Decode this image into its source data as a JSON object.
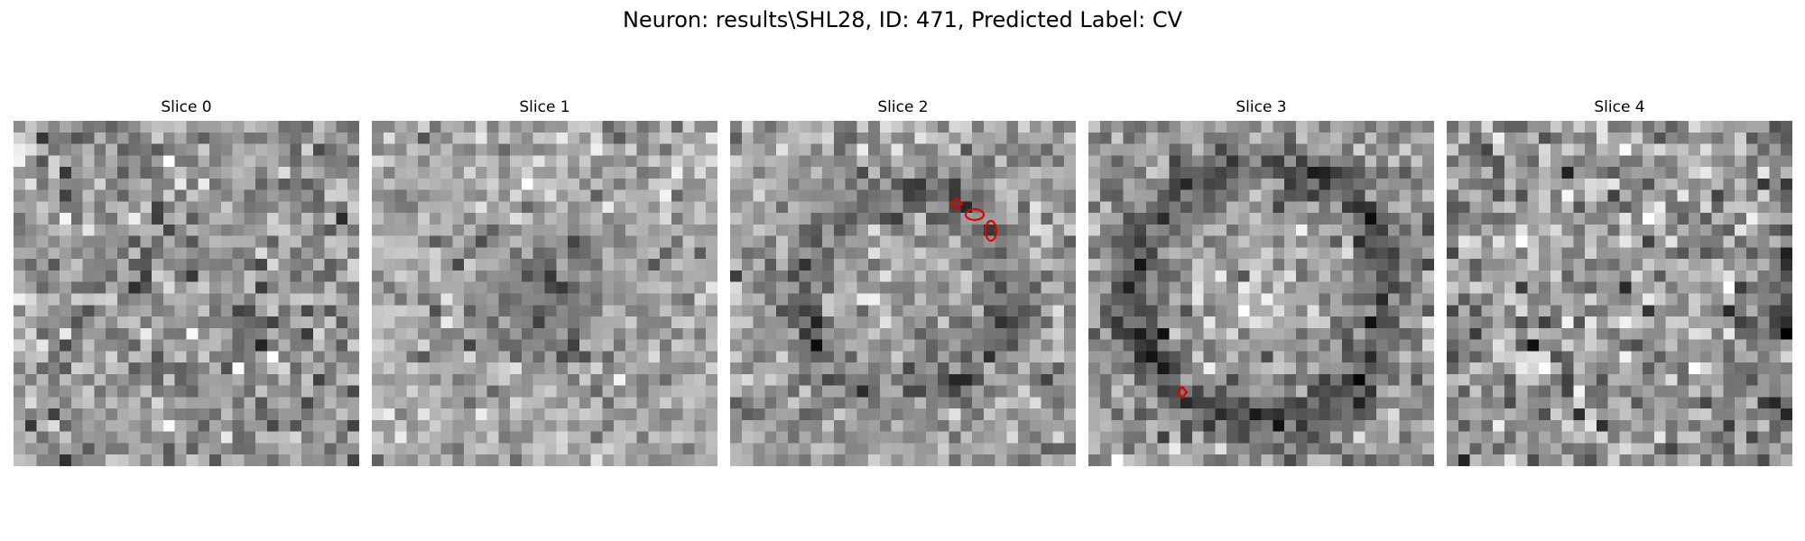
{
  "figure": {
    "title": "Neuron: results\\SHL28, ID: 471, Predicted Label: CV"
  },
  "panels": [
    {
      "title": "Slice 0"
    },
    {
      "title": "Slice 1"
    },
    {
      "title": "Slice 2"
    },
    {
      "title": "Slice 3"
    },
    {
      "title": "Slice 4"
    }
  ],
  "colors": {
    "background": "#ffffff",
    "roi_outline": "#e00000",
    "colormap": "grayscale"
  }
}
